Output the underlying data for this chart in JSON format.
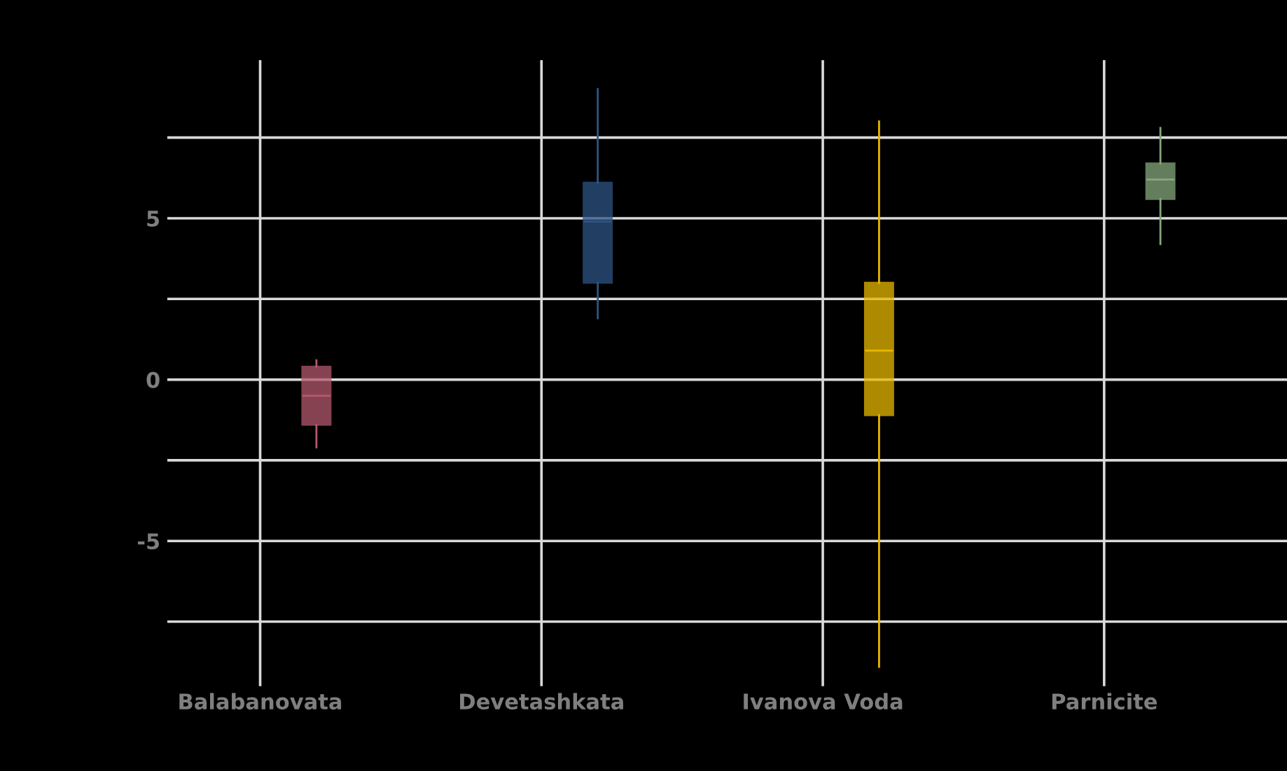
{
  "chart_data": {
    "type": "box",
    "categories": [
      "Balabanovata",
      "Devetashkata",
      "Ivanova Voda",
      "Parnicite"
    ],
    "colors": [
      "#b5596e",
      "#2e5585",
      "#e8b800",
      "#86a87c"
    ],
    "boxes": [
      {
        "low": -2.1,
        "q1": -1.4,
        "median": -0.5,
        "q3": 0.4,
        "high": 0.6
      },
      {
        "low": 1.9,
        "q1": 3.0,
        "median": 4.9,
        "q3": 6.1,
        "high": 9.0
      },
      {
        "low": -8.9,
        "q1": -1.1,
        "median": 0.9,
        "q3": 3.0,
        "high": 8.0
      },
      {
        "low": 4.2,
        "q1": 5.6,
        "median": 6.2,
        "q3": 6.7,
        "high": 7.8
      }
    ],
    "ylim": [
      -9.5,
      9.9
    ],
    "yticks": [
      {
        "value": -7.5,
        "label": null
      },
      -5,
      {
        "value": -2.5,
        "label": null
      },
      0,
      {
        "value": 2.5,
        "label": null
      },
      5,
      {
        "value": 7.5,
        "label": null
      }
    ],
    "grid": true
  }
}
